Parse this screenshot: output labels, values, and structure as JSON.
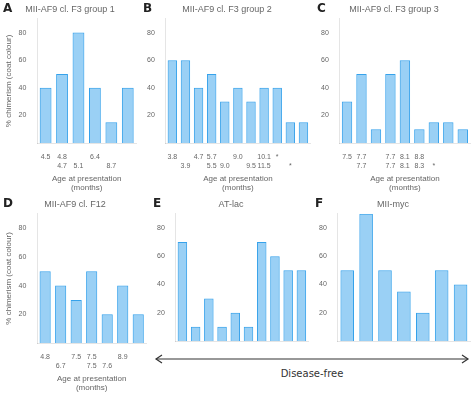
{
  "chart_data": [
    {
      "type": "bar",
      "panel_label": "A",
      "title": "MII-AF9 cl. F3 group 1",
      "categories": [
        [
          "4.5",
          null
        ],
        [
          "4.8",
          "4.7"
        ],
        [
          null,
          "5.1"
        ],
        [
          "6.4",
          null
        ],
        [
          null,
          "8.7"
        ],
        null
      ],
      "values": [
        40,
        50,
        80,
        40,
        15,
        40
      ],
      "xlabel": "Age at presentation\n(months)",
      "ylabel": "% chimerism (coat colour)",
      "ylim": [
        0,
        90
      ],
      "yticks": [
        20,
        40,
        60,
        80
      ],
      "grid": false
    },
    {
      "type": "bar",
      "panel_label": "B",
      "title": "MII-AF9 cl. F3 group 2",
      "categories": [
        [
          "3.8",
          null
        ],
        [
          null,
          "3.9"
        ],
        [
          "4.7",
          null
        ],
        [
          "5.7",
          "5.5"
        ],
        [
          null,
          "9.0"
        ],
        [
          "9.0",
          null
        ],
        [
          null,
          "9.5"
        ],
        [
          "10.1",
          "11.5"
        ],
        [
          "*",
          null
        ],
        [
          null,
          "*"
        ],
        null
      ],
      "values": [
        60,
        60,
        40,
        50,
        30,
        40,
        30,
        40,
        40,
        15,
        15
      ],
      "xlabel": "Age at presentation\n(months)",
      "ylim": [
        0,
        90
      ],
      "yticks": [
        20,
        40,
        60,
        80
      ],
      "grid": false
    },
    {
      "type": "bar",
      "panel_label": "C",
      "title": "MII-AF9 cl. F3 group 3",
      "categories": [
        [
          "7.5",
          null
        ],
        [
          "7.7",
          "7.7"
        ],
        null,
        [
          "7.7",
          "7.7"
        ],
        [
          "8.1",
          "8.1"
        ],
        [
          "8.8",
          "8.3"
        ],
        [
          null,
          "*"
        ],
        null,
        null
      ],
      "values": [
        30,
        50,
        10,
        50,
        60,
        10,
        15,
        15,
        10
      ],
      "xlabel": "Age at presentation\n(months)",
      "ylim": [
        0,
        90
      ],
      "yticks": [
        20,
        40,
        60,
        80
      ],
      "grid": false
    },
    {
      "type": "bar",
      "panel_label": "D",
      "title": "MII-AF9 cl. F12",
      "categories": [
        [
          "4.8",
          null
        ],
        [
          null,
          "6.7"
        ],
        [
          "7.5",
          null
        ],
        [
          "7.5",
          "7.5"
        ],
        [
          null,
          "7.6"
        ],
        [
          "8.9",
          null
        ],
        null
      ],
      "values": [
        50,
        40,
        30,
        50,
        20,
        40,
        20
      ],
      "xlabel": "Age at presentation\n(months)",
      "ylabel": "% chimerism (coat colour)",
      "ylim": [
        0,
        90
      ],
      "yticks": [
        20,
        40,
        60,
        80
      ],
      "grid": false
    },
    {
      "type": "bar",
      "panel_label": "E",
      "title": "AT-lac",
      "categories": [
        null,
        null,
        null,
        null,
        null,
        null,
        null,
        null,
        null,
        null
      ],
      "values": [
        70,
        10,
        30,
        10,
        20,
        10,
        70,
        60,
        50,
        50
      ],
      "tick_labels": "y",
      "annotation": "Disease-free",
      "ylim": [
        0,
        90
      ],
      "yticks": [
        20,
        40,
        60,
        80
      ],
      "grid": false
    },
    {
      "type": "bar",
      "panel_label": "F",
      "title": "MII-myc",
      "categories": [
        null,
        null,
        null,
        null,
        null,
        null,
        null
      ],
      "values": [
        50,
        90,
        50,
        35,
        20,
        50,
        40
      ],
      "tick_labels": "y",
      "ylim": [
        0,
        90
      ],
      "yticks": [
        20,
        40,
        60,
        80
      ],
      "grid": false
    }
  ]
}
